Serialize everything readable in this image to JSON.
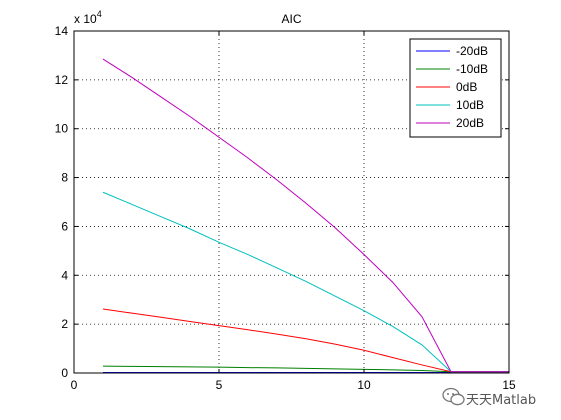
{
  "chart_data": {
    "type": "line",
    "title": "AIC",
    "xlabel": "",
    "ylabel": "",
    "xlim": [
      0,
      15
    ],
    "ylim": [
      0,
      14
    ],
    "y_multiplier": "x 10",
    "y_exponent": "4",
    "xticks": [
      "0",
      "5",
      "10",
      "15"
    ],
    "yticks": [
      "0",
      "2",
      "4",
      "6",
      "8",
      "10",
      "12",
      "14"
    ],
    "grid": true,
    "legend_position": "top-right",
    "x": [
      1,
      2,
      3,
      4,
      5,
      6,
      7,
      8,
      9,
      10,
      11,
      12,
      13,
      14,
      15
    ],
    "series": [
      {
        "name": "-20dB",
        "color": "#0000ff",
        "values": [
          0.02,
          0.02,
          0.02,
          0.02,
          0.02,
          0.02,
          0.02,
          0.02,
          0.02,
          0.02,
          0.02,
          0.02,
          0.02,
          0.02,
          0.02
        ]
      },
      {
        "name": "-10dB",
        "color": "#008000",
        "values": [
          0.28,
          0.27,
          0.26,
          0.25,
          0.24,
          0.22,
          0.21,
          0.19,
          0.17,
          0.15,
          0.13,
          0.1,
          0.05,
          0.05,
          0.05
        ]
      },
      {
        "name": "0dB",
        "color": "#ff0000",
        "values": [
          2.62,
          2.45,
          2.28,
          2.11,
          1.94,
          1.77,
          1.59,
          1.4,
          1.18,
          0.93,
          0.63,
          0.33,
          0.05,
          0.05,
          0.05
        ]
      },
      {
        "name": "10dB",
        "color": "#00bfbf",
        "values": [
          7.4,
          6.9,
          6.4,
          5.9,
          5.35,
          4.85,
          4.3,
          3.75,
          3.15,
          2.55,
          1.9,
          1.15,
          0.05,
          0.05,
          0.05
        ]
      },
      {
        "name": "20dB",
        "color": "#bf00bf",
        "values": [
          12.85,
          12.1,
          11.3,
          10.5,
          9.65,
          8.8,
          7.9,
          6.95,
          5.95,
          4.85,
          3.7,
          2.3,
          0.05,
          0.05,
          0.05
        ]
      }
    ]
  },
  "watermark": {
    "text": "天天Matlab",
    "icon": "wechat-icon"
  }
}
